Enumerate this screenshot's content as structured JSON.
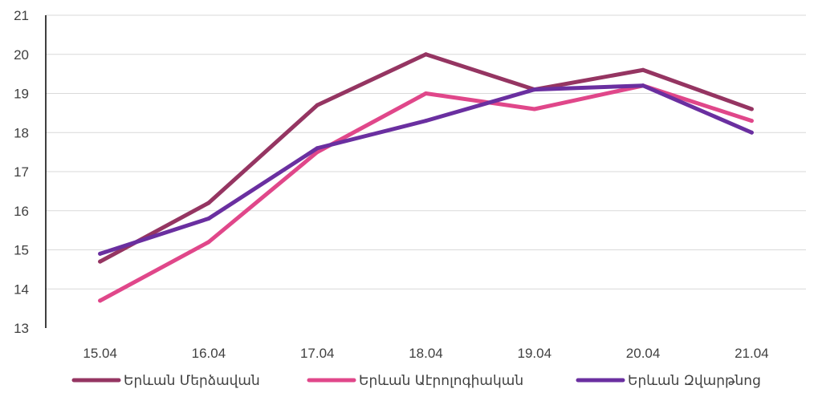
{
  "chart_data": {
    "type": "line",
    "categories": [
      "15.04",
      "16.04",
      "17.04",
      "18.04",
      "19.04",
      "20.04",
      "21.04"
    ],
    "ylim": [
      13,
      21
    ],
    "yticks": [
      "13",
      "14",
      "15",
      "16",
      "17",
      "18",
      "19",
      "20",
      "21"
    ],
    "grid": "horizontal",
    "legend_position": "bottom",
    "series": [
      {
        "name": "Երևան Մերձավան",
        "color": "#953562",
        "values": [
          14.7,
          16.2,
          18.7,
          20.0,
          19.1,
          19.6,
          18.6
        ]
      },
      {
        "name": "Երևան Աէրոլոգիական",
        "color": "#E0478A",
        "values": [
          13.7,
          15.2,
          17.5,
          19.0,
          18.6,
          19.2,
          18.3
        ]
      },
      {
        "name": "Երևան Զվարթնոց",
        "color": "#6A2FA0",
        "values": [
          14.9,
          15.8,
          17.6,
          18.3,
          19.1,
          19.2,
          18.0
        ]
      }
    ]
  }
}
